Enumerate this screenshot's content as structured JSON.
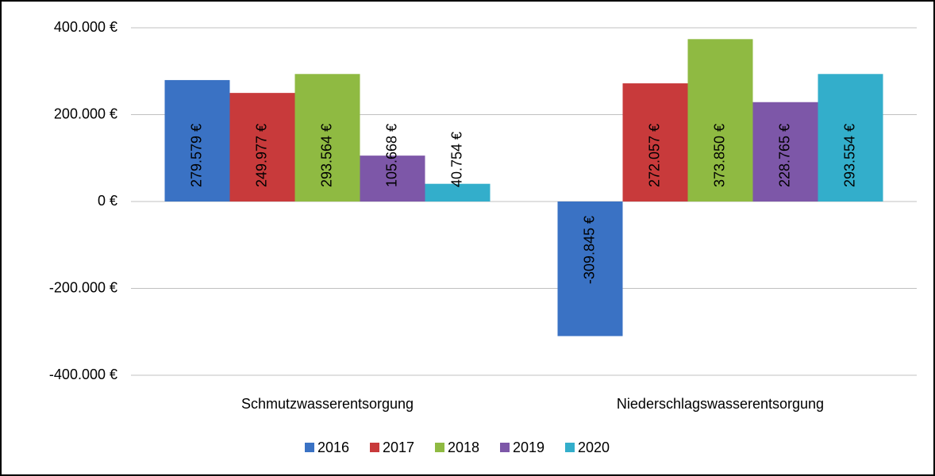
{
  "chart_data": {
    "type": "bar",
    "categories": [
      "Schmutzwasserentsorgung",
      "Niederschlagswasserentsorgung"
    ],
    "series": [
      {
        "name": "2016",
        "color": "#3a72c4",
        "values": [
          279579,
          -309845
        ],
        "value_labels": [
          "279.579 €",
          "-309.845 €"
        ]
      },
      {
        "name": "2017",
        "color": "#c83a3b",
        "values": [
          249977,
          272057
        ],
        "value_labels": [
          "249.977 €",
          "272.057 €"
        ]
      },
      {
        "name": "2018",
        "color": "#8fba42",
        "values": [
          293564,
          373850
        ],
        "value_labels": [
          "293.564 €",
          "373.850 €"
        ]
      },
      {
        "name": "2019",
        "color": "#7d57a8",
        "values": [
          105668,
          228765
        ],
        "value_labels": [
          "105.668 €",
          "228.765 €"
        ]
      },
      {
        "name": "2020",
        "color": "#33aecb",
        "values": [
          40754,
          293554
        ],
        "value_labels": [
          "40.754 €",
          "293.554 €"
        ]
      }
    ],
    "ylim": [
      -400000,
      400000
    ],
    "yticks": [
      {
        "value": -400000,
        "label": "-400.000 €"
      },
      {
        "value": -200000,
        "label": "-200.000 €"
      },
      {
        "value": 0,
        "label": "0 €"
      },
      {
        "value": 200000,
        "label": "200.000 €"
      },
      {
        "value": 400000,
        "label": "400.000 €"
      }
    ],
    "grid": true,
    "legend": "bottom"
  }
}
